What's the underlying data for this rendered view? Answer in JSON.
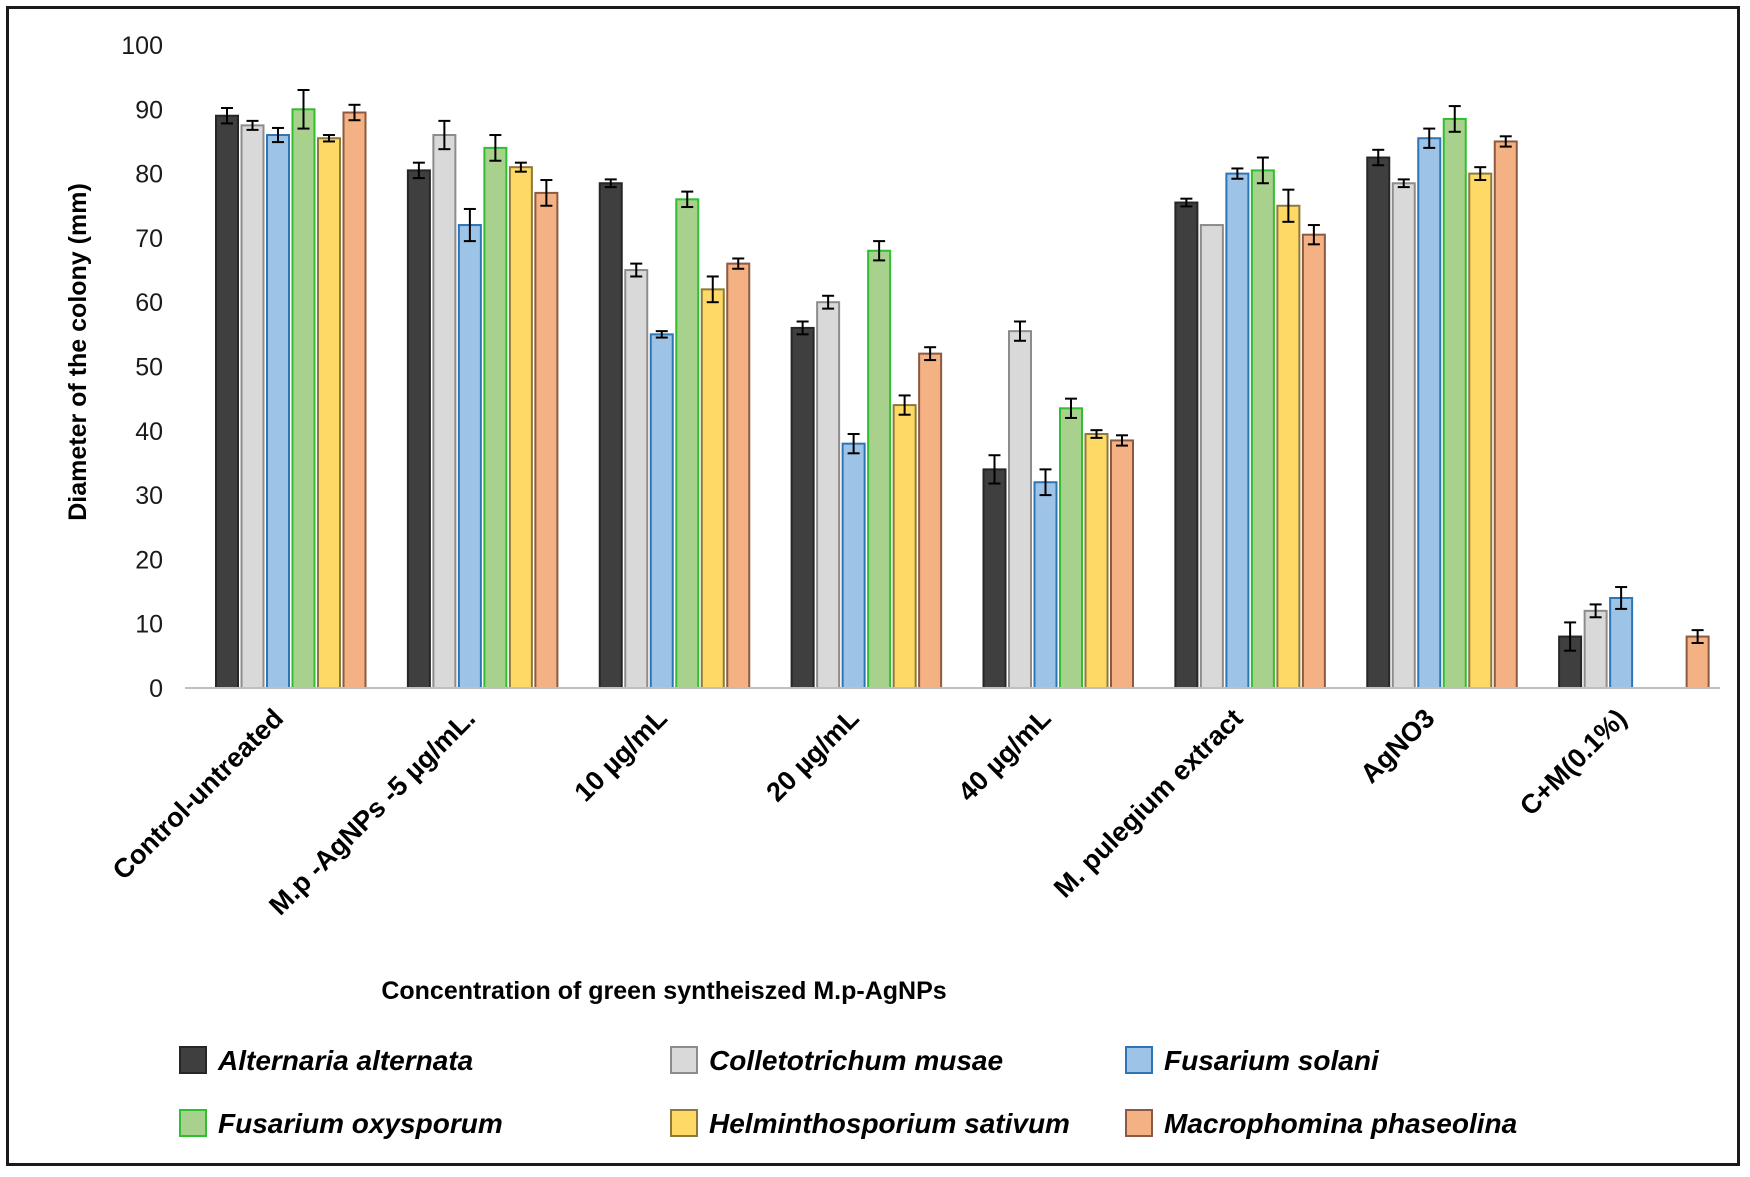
{
  "chart_data": {
    "type": "bar",
    "title": "",
    "xlabel": "Concentration of  green syntheiszed M.p-AgNPs",
    "ylabel": "Diameter of the colony (mm)",
    "ylim": [
      0,
      100
    ],
    "yticks": [
      "0",
      "10",
      "20",
      "30",
      "40",
      "50",
      "60",
      "70",
      "80",
      "90",
      "100"
    ],
    "grid": false,
    "legend_position": "bottom",
    "categories": [
      "Control-untreated",
      "M.p -AgNPs -5 µg/mL.",
      "10 µg/mL",
      "20 µg/mL",
      "40 µg/mL",
      "M. pulegium extract",
      "AgNO3",
      "C+M(0.1%)"
    ],
    "series": [
      {
        "name": "Alternaria alternata",
        "fill": "#3f3f3f",
        "stroke": "#262626",
        "values": [
          89,
          80.5,
          78.5,
          56,
          34,
          75.5,
          82.5,
          8
        ],
        "errors": [
          1.2,
          1.2,
          0.6,
          1.0,
          2.2,
          0.6,
          1.2,
          2.2
        ]
      },
      {
        "name": "Colletotrichum musae",
        "fill": "#d9d9d9",
        "stroke": "#8c8c8c",
        "values": [
          87.5,
          86,
          65,
          60,
          55.5,
          72,
          78.5,
          12
        ],
        "errors": [
          0.7,
          2.2,
          1.0,
          1.0,
          1.5,
          0.0,
          0.6,
          1.0
        ]
      },
      {
        "name": "Fusarium solani",
        "fill": "#9dc3e6",
        "stroke": "#2e75b6",
        "values": [
          86,
          72,
          55,
          38,
          32,
          80,
          85.5,
          14
        ],
        "errors": [
          1.1,
          2.5,
          0.5,
          1.5,
          2.0,
          0.8,
          1.5,
          1.7
        ]
      },
      {
        "name": "Fusarium oxysporum",
        "fill": "#a9d18e",
        "stroke": "#2fbf2f",
        "values": [
          90,
          84,
          76,
          68,
          43.5,
          80.5,
          88.5,
          0
        ],
        "errors": [
          3.0,
          2.0,
          1.2,
          1.5,
          1.5,
          2.0,
          2.0,
          0
        ]
      },
      {
        "name": "Helminthosporium sativum",
        "fill": "#ffd966",
        "stroke": "#8c7a3a",
        "values": [
          85.5,
          81,
          62,
          44,
          39.5,
          75,
          80,
          0
        ],
        "errors": [
          0.5,
          0.7,
          2.0,
          1.5,
          0.6,
          2.5,
          1.0,
          0
        ]
      },
      {
        "name": "Macrophomina phaseolina",
        "fill": "#f4b183",
        "stroke": "#8c5a40",
        "values": [
          89.5,
          77,
          66,
          52,
          38.5,
          70.5,
          85,
          8
        ],
        "errors": [
          1.2,
          2.0,
          0.8,
          1.0,
          0.8,
          1.5,
          0.8,
          1.0
        ]
      }
    ]
  }
}
